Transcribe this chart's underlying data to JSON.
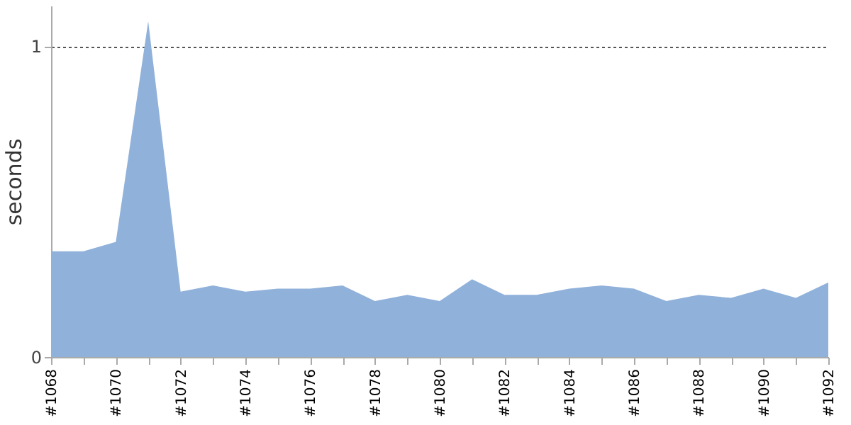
{
  "chart_data": {
    "type": "area",
    "ylabel": "seconds",
    "categories": [
      "#1068",
      null,
      "#1070",
      null,
      "#1072",
      null,
      "#1074",
      null,
      "#1076",
      null,
      "#1078",
      null,
      "#1080",
      null,
      "#1082",
      null,
      "#1084",
      null,
      "#1086",
      null,
      "#1088",
      null,
      "#1090",
      null,
      "#1092"
    ],
    "series": [
      {
        "color": "#90b1da",
        "values": [
          0.34,
          0.34,
          0.37,
          1.08,
          0.21,
          0.23,
          0.21,
          0.22,
          0.22,
          0.23,
          0.18,
          0.2,
          0.18,
          0.25,
          0.2,
          0.2,
          0.22,
          0.23,
          0.22,
          0.18,
          0.2,
          0.19,
          0.22,
          0.19,
          0.24
        ]
      }
    ],
    "ylim": [
      0,
      1.13
    ],
    "yticks": [
      0,
      1
    ],
    "grid": "y"
  }
}
